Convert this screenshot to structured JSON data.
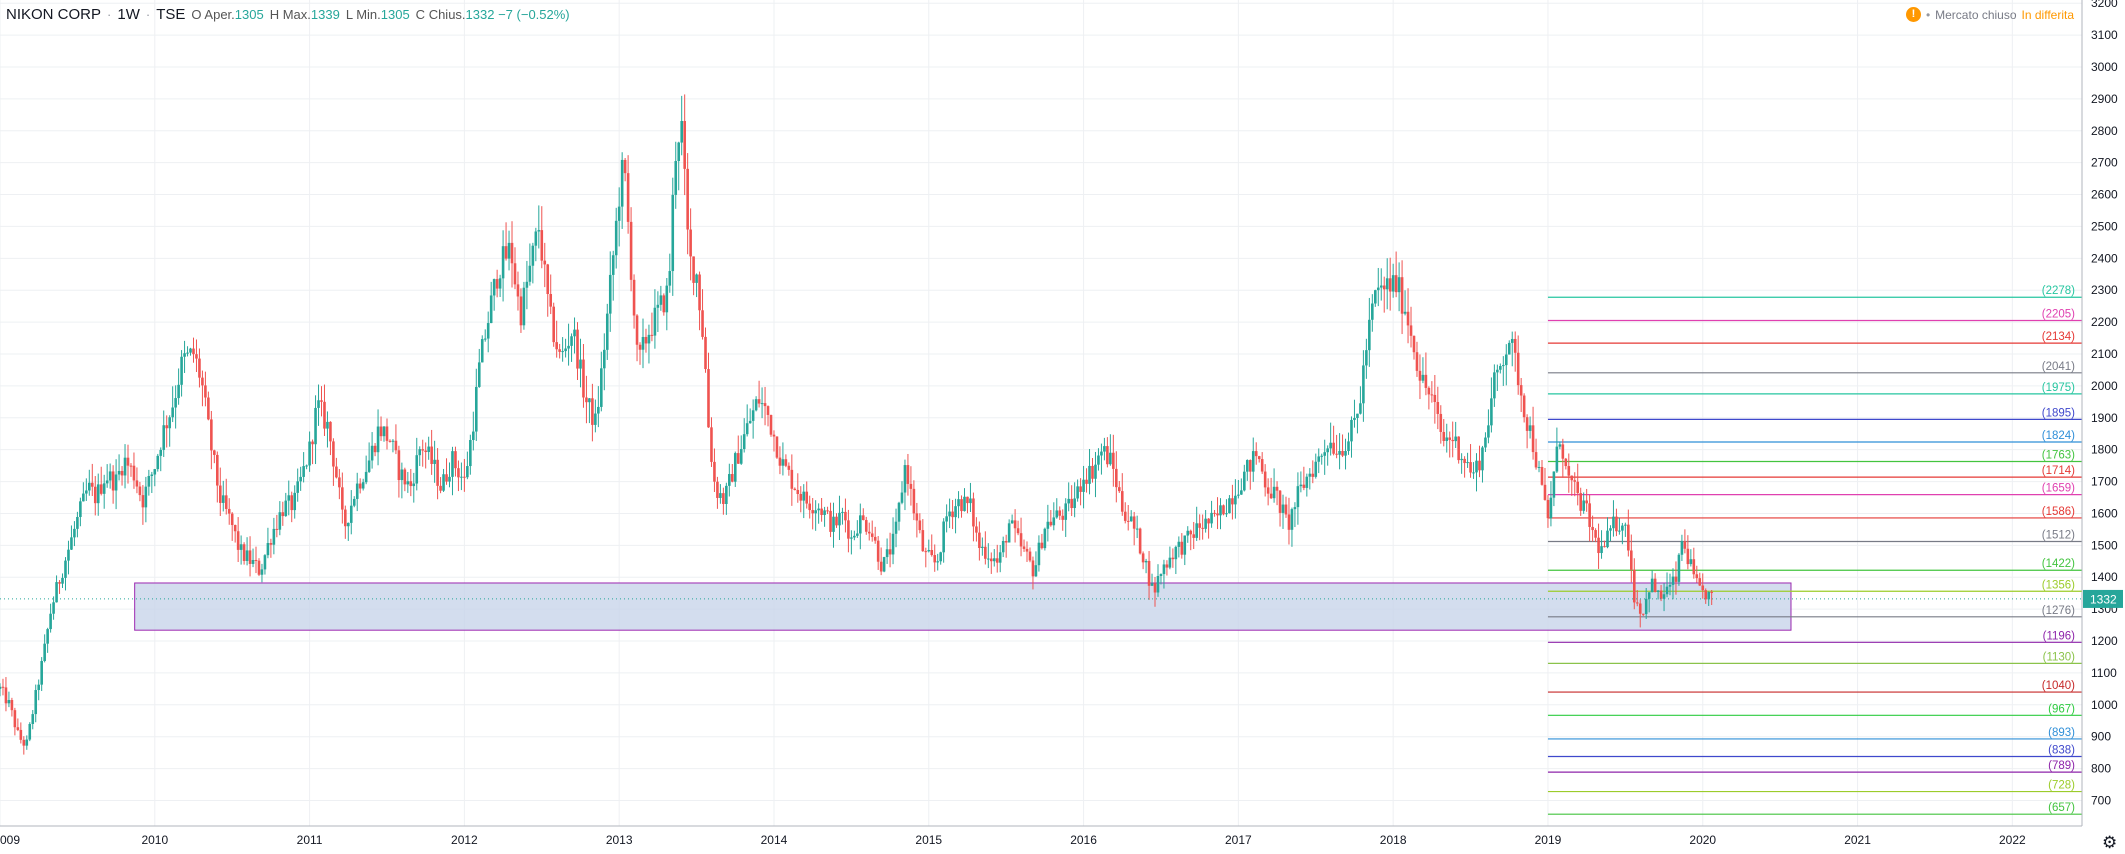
{
  "header": {
    "symbol": "NIKON CORP",
    "interval": "1W",
    "exchange": "TSE",
    "open_label": "O",
    "open_prefix": "Aper.",
    "open_value": "1305",
    "high_label": "H",
    "high_prefix": "Max.",
    "high_value": "1339",
    "low_label": "L",
    "low_prefix": "Min.",
    "low_value": "1305",
    "close_label": "C",
    "close_prefix": "Chius.",
    "close_value": "1332",
    "change": "−7 (−0.52%)"
  },
  "status": {
    "icon": "warning-icon",
    "market_status": "Mercato chiuso",
    "delay_status": "In differita",
    "icon_glyph": "!"
  },
  "chart_data": {
    "type": "candlestick",
    "title": "NIKON CORP · 1W · TSE",
    "y_axis_ticks": [
      700,
      800,
      900,
      1000,
      1100,
      1200,
      1300,
      1400,
      1500,
      1600,
      1700,
      1800,
      1900,
      2000,
      2100,
      2200,
      2300,
      2400,
      2500,
      2600,
      2700,
      2800,
      2900,
      3000,
      3100,
      3200
    ],
    "ylim": [
      620,
      3210
    ],
    "x_axis_ticks": [
      "009",
      "2010",
      "2011",
      "2012",
      "2013",
      "2014",
      "2015",
      "2016",
      "2017",
      "2018",
      "2019",
      "2020",
      "2021",
      "2022"
    ],
    "xlim": [
      2009.0,
      2022.45
    ],
    "last_price": "1332",
    "colors": {
      "up": "#26a69a",
      "down": "#ef5350",
      "box_fill": "#c8d4ea",
      "box_border": "#9c27b0"
    },
    "price_path": [
      [
        2009.0,
        1050
      ],
      [
        2009.06,
        1000
      ],
      [
        2009.12,
        900
      ],
      [
        2009.17,
        870
      ],
      [
        2009.22,
        1000
      ],
      [
        2009.28,
        1150
      ],
      [
        2009.33,
        1300
      ],
      [
        2009.4,
        1420
      ],
      [
        2009.45,
        1500
      ],
      [
        2009.52,
        1610
      ],
      [
        2009.57,
        1680
      ],
      [
        2009.62,
        1650
      ],
      [
        2009.68,
        1720
      ],
      [
        2009.75,
        1700
      ],
      [
        2009.8,
        1770
      ],
      [
        2009.87,
        1720
      ],
      [
        2009.92,
        1640
      ],
      [
        2010.0,
        1750
      ],
      [
        2010.05,
        1850
      ],
      [
        2010.12,
        1950
      ],
      [
        2010.18,
        2080
      ],
      [
        2010.25,
        2100
      ],
      [
        2010.3,
        2020
      ],
      [
        2010.36,
        1820
      ],
      [
        2010.42,
        1650
      ],
      [
        2010.5,
        1560
      ],
      [
        2010.55,
        1480
      ],
      [
        2010.62,
        1450
      ],
      [
        2010.68,
        1420
      ],
      [
        2010.75,
        1530
      ],
      [
        2010.83,
        1620
      ],
      [
        2010.9,
        1630
      ],
      [
        2011.0,
        1800
      ],
      [
        2011.05,
        1940
      ],
      [
        2011.12,
        1870
      ],
      [
        2011.18,
        1700
      ],
      [
        2011.22,
        1550
      ],
      [
        2011.3,
        1680
      ],
      [
        2011.38,
        1760
      ],
      [
        2011.45,
        1870
      ],
      [
        2011.52,
        1830
      ],
      [
        2011.58,
        1730
      ],
      [
        2011.65,
        1680
      ],
      [
        2011.72,
        1820
      ],
      [
        2011.8,
        1750
      ],
      [
        2011.85,
        1680
      ],
      [
        2011.92,
        1770
      ],
      [
        2012.0,
        1700
      ],
      [
        2012.05,
        1860
      ],
      [
        2012.1,
        2070
      ],
      [
        2012.17,
        2250
      ],
      [
        2012.22,
        2370
      ],
      [
        2012.3,
        2430
      ],
      [
        2012.36,
        2220
      ],
      [
        2012.43,
        2380
      ],
      [
        2012.48,
        2500
      ],
      [
        2012.55,
        2220
      ],
      [
        2012.62,
        2080
      ],
      [
        2012.7,
        2180
      ],
      [
        2012.78,
        1960
      ],
      [
        2012.85,
        1880
      ],
      [
        2012.92,
        2200
      ],
      [
        2013.0,
        2600
      ],
      [
        2013.03,
        2700
      ],
      [
        2013.08,
        2350
      ],
      [
        2013.12,
        2060
      ],
      [
        2013.18,
        2160
      ],
      [
        2013.25,
        2230
      ],
      [
        2013.32,
        2300
      ],
      [
        2013.36,
        2720
      ],
      [
        2013.4,
        2840
      ],
      [
        2013.45,
        2400
      ],
      [
        2013.5,
        2350
      ],
      [
        2013.55,
        2120
      ],
      [
        2013.58,
        1850
      ],
      [
        2013.62,
        1680
      ],
      [
        2013.68,
        1640
      ],
      [
        2013.75,
        1760
      ],
      [
        2013.82,
        1860
      ],
      [
        2013.9,
        1960
      ],
      [
        2013.96,
        1910
      ],
      [
        2014.05,
        1760
      ],
      [
        2014.12,
        1700
      ],
      [
        2014.2,
        1640
      ],
      [
        2014.3,
        1620
      ],
      [
        2014.38,
        1560
      ],
      [
        2014.45,
        1600
      ],
      [
        2014.5,
        1520
      ],
      [
        2014.55,
        1580
      ],
      [
        2014.62,
        1560
      ],
      [
        2014.7,
        1430
      ],
      [
        2014.78,
        1520
      ],
      [
        2014.85,
        1760
      ],
      [
        2014.9,
        1620
      ],
      [
        2014.97,
        1470
      ],
      [
        2015.05,
        1440
      ],
      [
        2015.12,
        1600
      ],
      [
        2015.2,
        1640
      ],
      [
        2015.27,
        1620
      ],
      [
        2015.32,
        1500
      ],
      [
        2015.4,
        1470
      ],
      [
        2015.45,
        1440
      ],
      [
        2015.52,
        1570
      ],
      [
        2015.6,
        1490
      ],
      [
        2015.68,
        1420
      ],
      [
        2015.75,
        1560
      ],
      [
        2015.82,
        1590
      ],
      [
        2015.88,
        1600
      ],
      [
        2015.95,
        1650
      ],
      [
        2016.0,
        1720
      ],
      [
        2016.05,
        1730
      ],
      [
        2016.12,
        1800
      ],
      [
        2016.18,
        1760
      ],
      [
        2016.25,
        1620
      ],
      [
        2016.32,
        1560
      ],
      [
        2016.38,
        1480
      ],
      [
        2016.45,
        1350
      ],
      [
        2016.5,
        1420
      ],
      [
        2016.58,
        1480
      ],
      [
        2016.66,
        1510
      ],
      [
        2016.75,
        1560
      ],
      [
        2016.85,
        1580
      ],
      [
        2016.95,
        1650
      ],
      [
        2017.05,
        1730
      ],
      [
        2017.12,
        1790
      ],
      [
        2017.18,
        1690
      ],
      [
        2017.25,
        1650
      ],
      [
        2017.32,
        1560
      ],
      [
        2017.38,
        1650
      ],
      [
        2017.45,
        1720
      ],
      [
        2017.52,
        1770
      ],
      [
        2017.58,
        1830
      ],
      [
        2017.65,
        1800
      ],
      [
        2017.72,
        1840
      ],
      [
        2017.78,
        1930
      ],
      [
        2017.82,
        2100
      ],
      [
        2017.88,
        2280
      ],
      [
        2017.95,
        2310
      ],
      [
        2018.02,
        2320
      ],
      [
        2018.08,
        2240
      ],
      [
        2018.12,
        2160
      ],
      [
        2018.18,
        2020
      ],
      [
        2018.25,
        1960
      ],
      [
        2018.32,
        1830
      ],
      [
        2018.38,
        1840
      ],
      [
        2018.45,
        1780
      ],
      [
        2018.52,
        1720
      ],
      [
        2018.58,
        1800
      ],
      [
        2018.65,
        2000
      ],
      [
        2018.7,
        2080
      ],
      [
        2018.75,
        2150
      ],
      [
        2018.8,
        2050
      ],
      [
        2018.85,
        1920
      ],
      [
        2018.9,
        1830
      ],
      [
        2018.95,
        1700
      ],
      [
        2019.0,
        1580
      ],
      [
        2019.03,
        1700
      ],
      [
        2019.08,
        1850
      ],
      [
        2019.12,
        1720
      ],
      [
        2019.18,
        1660
      ],
      [
        2019.25,
        1600
      ],
      [
        2019.3,
        1520
      ],
      [
        2019.35,
        1480
      ],
      [
        2019.42,
        1560
      ],
      [
        2019.48,
        1580
      ],
      [
        2019.52,
        1510
      ],
      [
        2019.56,
        1330
      ],
      [
        2019.62,
        1290
      ],
      [
        2019.66,
        1390
      ],
      [
        2019.72,
        1330
      ],
      [
        2019.76,
        1360
      ],
      [
        2019.8,
        1370
      ],
      [
        2019.84,
        1410
      ],
      [
        2019.86,
        1520
      ],
      [
        2019.9,
        1470
      ],
      [
        2019.94,
        1400
      ],
      [
        2019.98,
        1350
      ],
      [
        2020.02,
        1350
      ],
      [
        2020.06,
        1332
      ]
    ],
    "levels": [
      {
        "value": 2278,
        "label": "(2278)",
        "color": "#26c6a0"
      },
      {
        "value": 2205,
        "label": "(2205)",
        "color": "#e040b0"
      },
      {
        "value": 2134,
        "label": "(2134)",
        "color": "#e53935"
      },
      {
        "value": 2041,
        "label": "(2041)",
        "color": "#787b86"
      },
      {
        "value": 1975,
        "label": "(1975)",
        "color": "#26c6a0"
      },
      {
        "value": 1895,
        "label": "(1895)",
        "color": "#3f48cc"
      },
      {
        "value": 1824,
        "label": "(1824)",
        "color": "#2f8fd8"
      },
      {
        "value": 1763,
        "label": "(1763)",
        "color": "#43c43f"
      },
      {
        "value": 1714,
        "label": "(1714)",
        "color": "#e53935"
      },
      {
        "value": 1659,
        "label": "(1659)",
        "color": "#e040b0"
      },
      {
        "value": 1586,
        "label": "(1586)",
        "color": "#e53935"
      },
      {
        "value": 1512,
        "label": "(1512)",
        "color": "#787b86"
      },
      {
        "value": 1422,
        "label": "(1422)",
        "color": "#43c43f"
      },
      {
        "value": 1356,
        "label": "(1356)",
        "color": "#9ccc2a"
      },
      {
        "value": 1276,
        "label": "(1276)",
        "color": "#787b86"
      },
      {
        "value": 1196,
        "label": "(1196)",
        "color": "#8e24aa"
      },
      {
        "value": 1130,
        "label": "(1130)",
        "color": "#8bc34a"
      },
      {
        "value": 1040,
        "label": "(1040)",
        "color": "#c62828"
      },
      {
        "value": 967,
        "label": "(967)",
        "color": "#2ecc40"
      },
      {
        "value": 893,
        "label": "(893)",
        "color": "#2f8fd8"
      },
      {
        "value": 838,
        "label": "(838)",
        "color": "#3f48cc"
      },
      {
        "value": 789,
        "label": "(789)",
        "color": "#8e24aa"
      },
      {
        "value": 728,
        "label": "(728)",
        "color": "#9ccc2a"
      },
      {
        "value": 657,
        "label": "(657)",
        "color": "#43c43f"
      }
    ],
    "level_x_start": 2019.0,
    "support_zone": {
      "x_start": 2009.87,
      "x_end": 2020.57,
      "y_low": 1234,
      "y_high": 1382
    }
  }
}
